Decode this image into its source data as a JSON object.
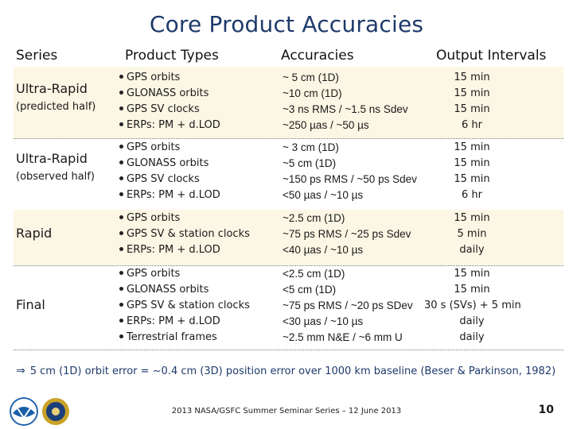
{
  "title": "Core Product Accuracies",
  "headers": {
    "series": "Series",
    "product_types": "Product Types",
    "accuracies": "Accuracies",
    "output_intervals": "Output Intervals"
  },
  "rows": [
    {
      "series": "Ultra-Rapid",
      "series_sub": "(predicted half)",
      "products": [
        "GPS orbits",
        "GLONASS orbits",
        "GPS SV clocks",
        "ERPs: PM + d.LOD"
      ],
      "accuracies": [
        "~ 5 cm (1D)",
        "~10 cm (1D)",
        "~3 ns RMS / ~1.5 ns Sdev",
        "~250 µas / ~50 µs"
      ],
      "intervals": [
        "15 min",
        "15 min",
        "15 min",
        "6 hr"
      ]
    },
    {
      "series": "Ultra-Rapid",
      "series_sub": "(observed half)",
      "products": [
        "GPS orbits",
        "GLONASS orbits",
        "GPS SV clocks",
        "ERPs: PM + d.LOD"
      ],
      "accuracies": [
        "~ 3 cm (1D)",
        "~5 cm (1D)",
        "~150 ps RMS / ~50 ps Sdev",
        "<50 µas / ~10 µs"
      ],
      "intervals": [
        "15 min",
        "15 min",
        "15 min",
        "6 hr"
      ]
    },
    {
      "series": "Rapid",
      "series_sub": "",
      "products": [
        "GPS orbits",
        "GPS SV & station clocks",
        "ERPs: PM + d.LOD"
      ],
      "accuracies": [
        "~2.5 cm (1D)",
        "~75 ps RMS / ~25 ps Sdev",
        "<40 µas / ~10 µs"
      ],
      "intervals": [
        "15 min",
        "5 min",
        "daily"
      ]
    },
    {
      "series": "Final",
      "series_sub": "",
      "products": [
        "GPS orbits",
        "GLONASS orbits",
        "GPS SV & station clocks",
        "ERPs: PM + d.LOD",
        "Terrestrial frames"
      ],
      "accuracies": [
        "<2.5 cm (1D)",
        "<5 cm (1D)",
        "~75 ps RMS / ~20 ps SDev",
        "<30 µas / ~10 µs",
        "~2.5 mm N&E / ~6 mm U"
      ],
      "intervals": [
        "15 min",
        "15 min",
        "30 s (SVs) + 5 min",
        "daily",
        "daily"
      ]
    }
  ],
  "footnote": "5 cm (1D) orbit error = ~0.4 cm (3D) position error over 1000 km baseline (Beser & Parkinson, 1982)",
  "footer": "2013 NASA/GSFC Summer Seminar Series – 12 June 2013",
  "page_number": "10",
  "colors": {
    "title": "#1f3a6b",
    "row_tint": "#fcf6e4",
    "noaa_blue": "#1b5fa8",
    "gold": "#c9a227"
  },
  "logos": [
    "noaa-logo",
    "seal-logo"
  ]
}
